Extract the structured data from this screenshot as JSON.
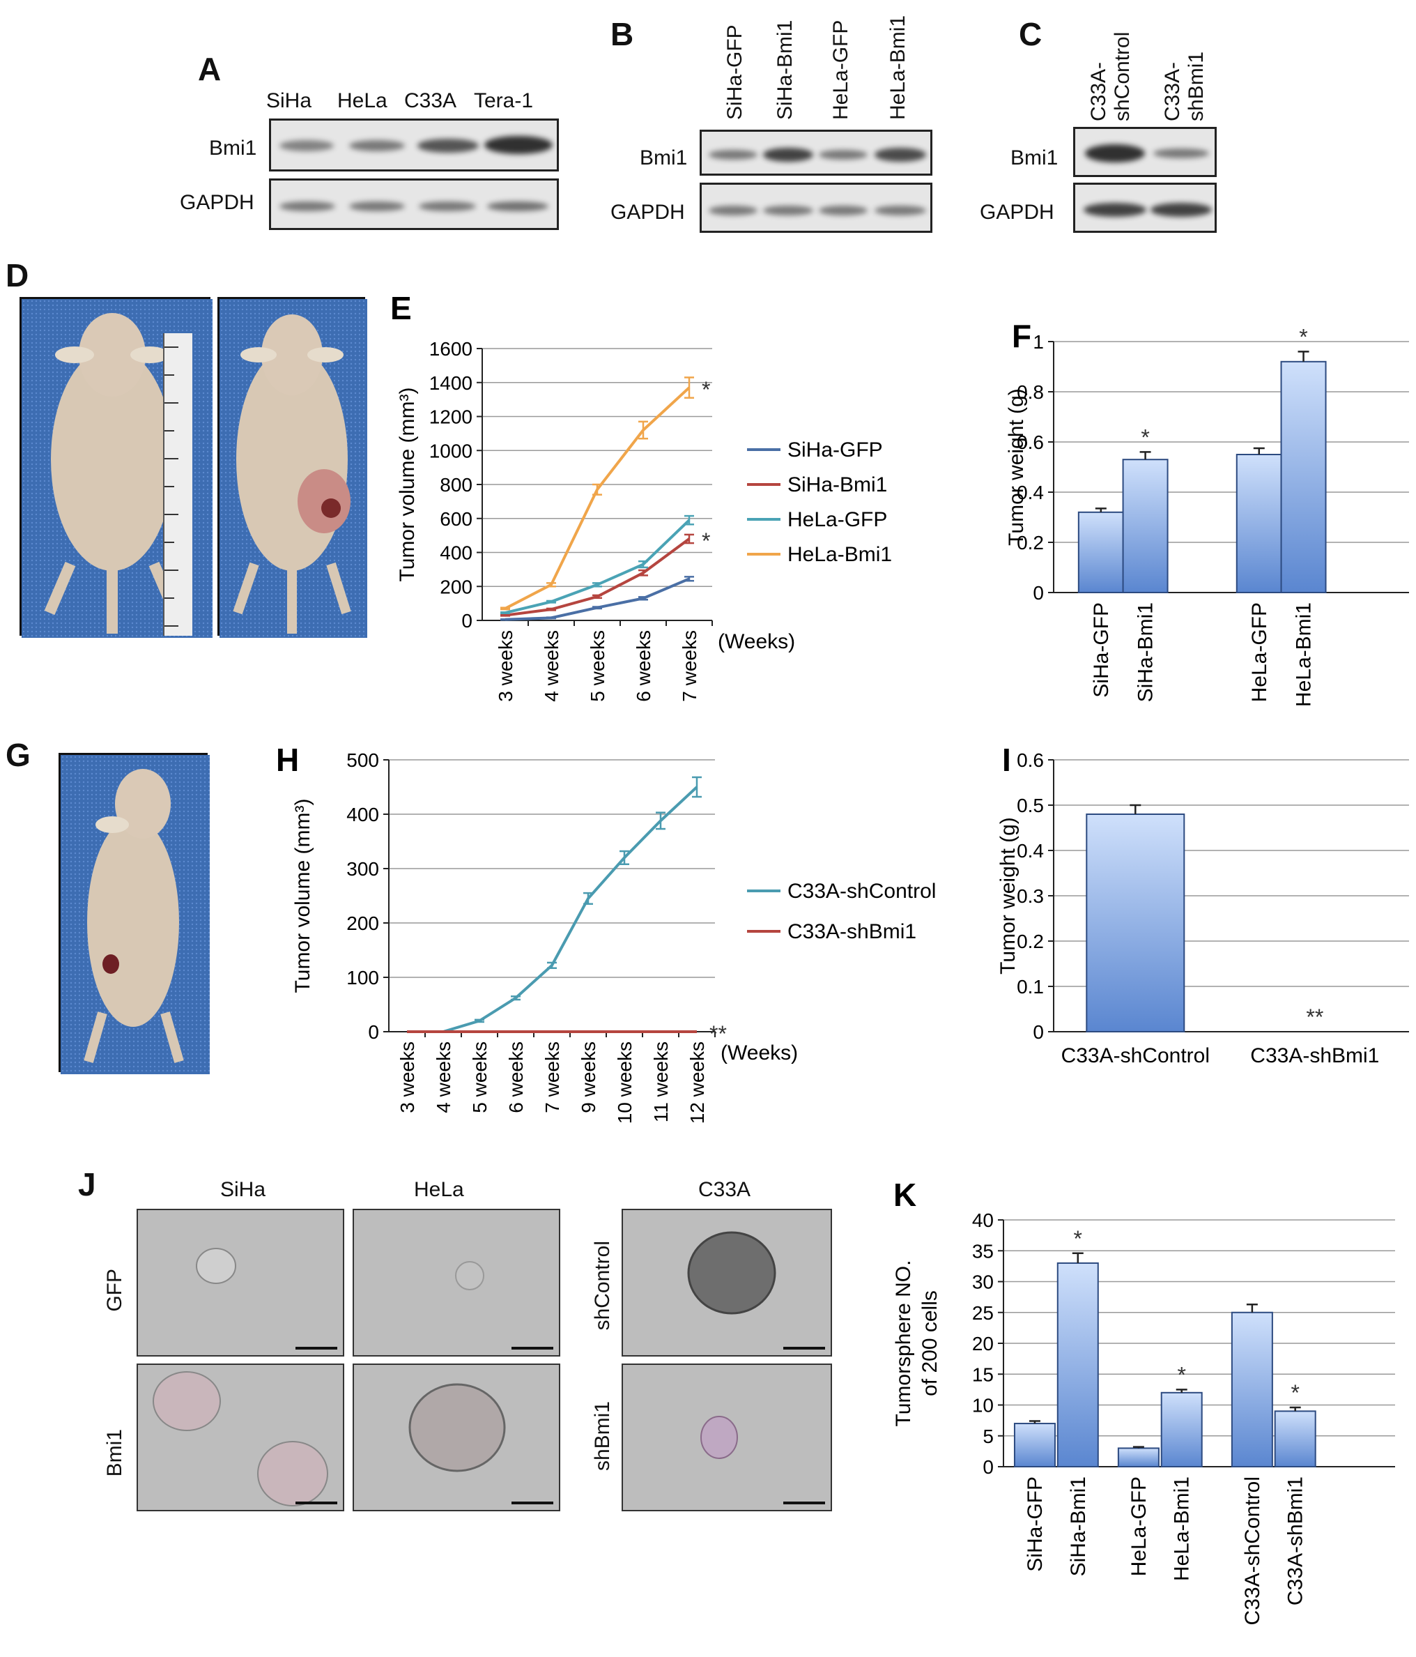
{
  "panels": {
    "A": {
      "letter": "A",
      "lanes": [
        "SiHa",
        "HeLa",
        "C33A",
        "Tera-1"
      ],
      "rows": [
        "Bmi1",
        "GAPDH"
      ]
    },
    "B": {
      "letter": "B",
      "lanes": [
        "SiHa-GFP",
        "SiHa-Bmi1",
        "HeLa-GFP",
        "HeLa-Bmi1"
      ],
      "rows": [
        "Bmi1",
        "GAPDH"
      ]
    },
    "C": {
      "letter": "C",
      "lanes": [
        "C33A-shControl",
        "C33A-shBmi1"
      ],
      "rows": [
        "Bmi1",
        "GAPDH"
      ]
    },
    "D": {
      "letter": "D"
    },
    "G": {
      "letter": "G"
    },
    "J": {
      "letter": "J",
      "col_labels": [
        "SiHa",
        "HeLa",
        "C33A"
      ],
      "row_labels_left": [
        "GFP",
        "Bmi1"
      ],
      "row_labels_mid": [
        "shControl",
        "shBmi1"
      ]
    }
  },
  "chart_data": [
    {
      "id": "E",
      "letter": "E",
      "type": "line",
      "x": [
        "3 weeks",
        "4 weeks",
        "5 weeks",
        "6 weeks",
        "7 weeks"
      ],
      "xunit": "(Weeks)",
      "ylabel": "Tumor volume (mm³)",
      "ylim": [
        0,
        1600
      ],
      "yticks": [
        0,
        200,
        400,
        600,
        800,
        1000,
        1200,
        1400,
        1600
      ],
      "grid": true,
      "legend": "right",
      "series": [
        {
          "name": "SiHa-GFP",
          "color": "#4a6fa5",
          "values": [
            5,
            15,
            75,
            130,
            245
          ],
          "err": [
            2,
            3,
            5,
            8,
            12
          ]
        },
        {
          "name": "SiHa-Bmi1",
          "color": "#b5453f",
          "values": [
            30,
            65,
            140,
            280,
            480
          ],
          "err": [
            3,
            5,
            8,
            15,
            25
          ]
        },
        {
          "name": "HeLa-GFP",
          "color": "#4aa3b5",
          "values": [
            45,
            110,
            210,
            330,
            590
          ],
          "err": [
            3,
            5,
            10,
            18,
            25
          ]
        },
        {
          "name": "HeLa-Bmi1",
          "color": "#f0a54a",
          "values": [
            70,
            210,
            770,
            1120,
            1370
          ],
          "err": [
            5,
            10,
            30,
            50,
            60
          ]
        }
      ],
      "annotations": [
        {
          "text": "*",
          "series": 3
        },
        {
          "text": "*",
          "series": 1
        }
      ]
    },
    {
      "id": "F",
      "letter": "F",
      "type": "bar",
      "categories": [
        "SiHa-GFP",
        "SiHa-Bmi1",
        "HeLa-GFP",
        "HeLa-Bmi1"
      ],
      "values": [
        0.32,
        0.53,
        0.55,
        0.92
      ],
      "err": [
        0.015,
        0.03,
        0.025,
        0.04
      ],
      "sig": [
        "",
        "*",
        "",
        "*"
      ],
      "ylabel": "Tumor weight (g)",
      "ylim": [
        0,
        1
      ],
      "yticks": [
        0,
        0.2,
        0.4,
        0.6,
        0.8,
        1
      ],
      "grid": true
    },
    {
      "id": "H",
      "letter": "H",
      "type": "line",
      "x": [
        "3 weeks",
        "4 weeks",
        "5 weeks",
        "6 weeks",
        "7 weeks",
        "9 weeks",
        "10 weeks",
        "11 weeks",
        "12 weeks"
      ],
      "xunit": "(Weeks)",
      "ylabel": "Tumor volume (mm³)",
      "ylim": [
        0,
        500
      ],
      "yticks": [
        0,
        100,
        200,
        300,
        400,
        500
      ],
      "grid": true,
      "legend": "right",
      "series": [
        {
          "name": "C33A-shControl",
          "color": "#4a9bb0",
          "values": [
            0,
            0,
            20,
            62,
            122,
            245,
            320,
            388,
            450
          ],
          "err": [
            0,
            0,
            2,
            3,
            5,
            10,
            12,
            15,
            18
          ]
        },
        {
          "name": "C33A-shBmi1",
          "color": "#b5453f",
          "values": [
            0,
            0,
            0,
            0,
            0,
            0,
            0,
            0,
            0
          ],
          "err": [
            0,
            0,
            0,
            0,
            0,
            0,
            0,
            0,
            0
          ]
        }
      ],
      "annotations": [
        {
          "text": "**",
          "series": 1
        }
      ]
    },
    {
      "id": "I",
      "letter": "I",
      "type": "bar",
      "categories": [
        "C33A-shControl",
        "C33A-shBmi1"
      ],
      "values": [
        0.48,
        0
      ],
      "err": [
        0.02,
        0
      ],
      "sig": [
        "",
        "**"
      ],
      "ylabel": "Tumor weight (g)",
      "ylim": [
        0,
        0.6
      ],
      "yticks": [
        0,
        0.1,
        0.2,
        0.3,
        0.4,
        0.5,
        0.6
      ],
      "grid": true
    },
    {
      "id": "K",
      "letter": "K",
      "type": "bar",
      "categories": [
        "SiHa-GFP",
        "SiHa-Bmi1",
        "HeLa-GFP",
        "HeLa-Bmi1",
        "C33A-shControl",
        "C33A-shBmi1"
      ],
      "values": [
        7,
        33,
        3,
        12,
        25,
        9
      ],
      "err": [
        0.4,
        1.6,
        0.2,
        0.5,
        1.3,
        0.6
      ],
      "sig": [
        "",
        "*",
        "",
        "*",
        "",
        "*"
      ],
      "ylabel": [
        "Tumorsphere NO.",
        "of 200 cells"
      ],
      "ylim": [
        0,
        40
      ],
      "yticks": [
        0,
        5,
        10,
        15,
        20,
        25,
        30,
        35,
        40
      ],
      "grid": true
    }
  ]
}
